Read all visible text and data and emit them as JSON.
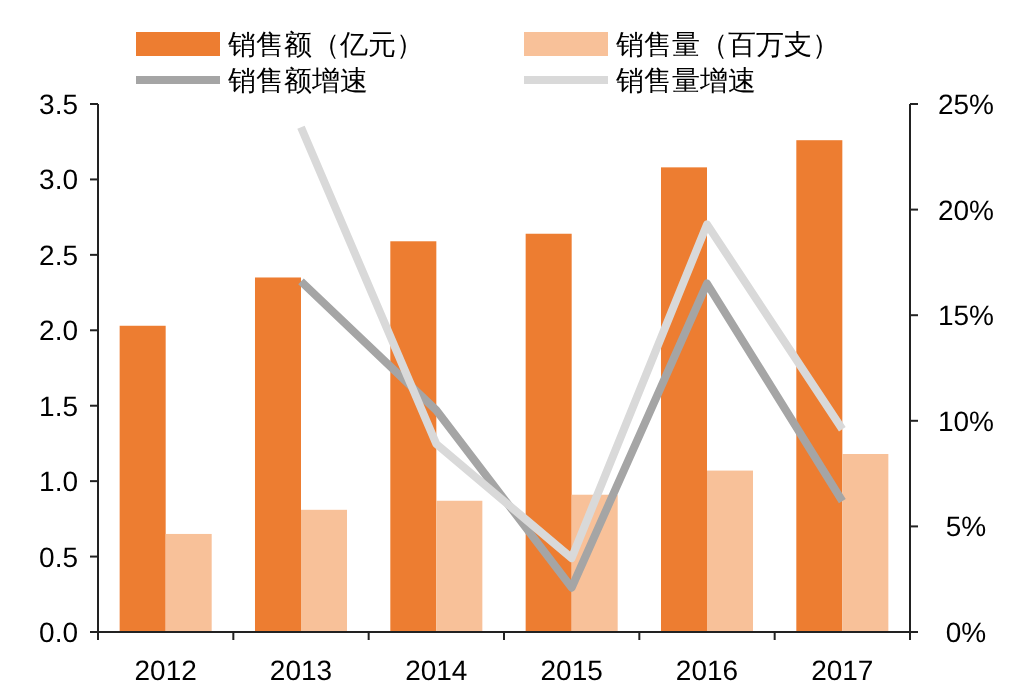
{
  "chart_data": {
    "type": "bar",
    "categories": [
      "2012",
      "2013",
      "2014",
      "2015",
      "2016",
      "2017"
    ],
    "series": [
      {
        "name": "销售额（亿元）",
        "color": "#ed7d31",
        "values": [
          2.03,
          2.35,
          2.59,
          2.64,
          3.08,
          3.26
        ]
      },
      {
        "name": "销售量（百万支）",
        "color": "#f8c199",
        "values": [
          0.65,
          0.81,
          0.87,
          0.91,
          1.07,
          1.18
        ]
      },
      {
        "name": "销售额增速",
        "type": "line",
        "axis": "y2",
        "color": "#a5a5a5",
        "values": [
          null,
          16.6,
          10.5,
          2.1,
          16.5,
          6.2
        ]
      },
      {
        "name": "销售量增速",
        "type": "line",
        "axis": "y2",
        "color": "#d9d9d9",
        "values": [
          null,
          23.9,
          8.9,
          3.5,
          19.3,
          9.6
        ]
      }
    ],
    "ylim": [
      0,
      3.5
    ],
    "yticks": [
      {
        "value": 0,
        "label": "0.0"
      },
      0.5,
      {
        "value": 1,
        "label": "1.0"
      },
      1.5,
      {
        "value": 2,
        "label": "2.0"
      },
      2.5,
      {
        "value": 3,
        "label": "3.0"
      },
      3.5
    ],
    "y2lim": [
      0,
      25
    ],
    "y2ticks": [
      {
        "value": 0,
        "label": "0%"
      },
      {
        "value": 5,
        "label": "5%"
      },
      {
        "value": 10,
        "label": "10%"
      },
      {
        "value": 15,
        "label": "15%"
      },
      {
        "value": 20,
        "label": "20%"
      },
      {
        "value": 25,
        "label": "25%"
      }
    ],
    "legend": "top",
    "grid": false
  }
}
